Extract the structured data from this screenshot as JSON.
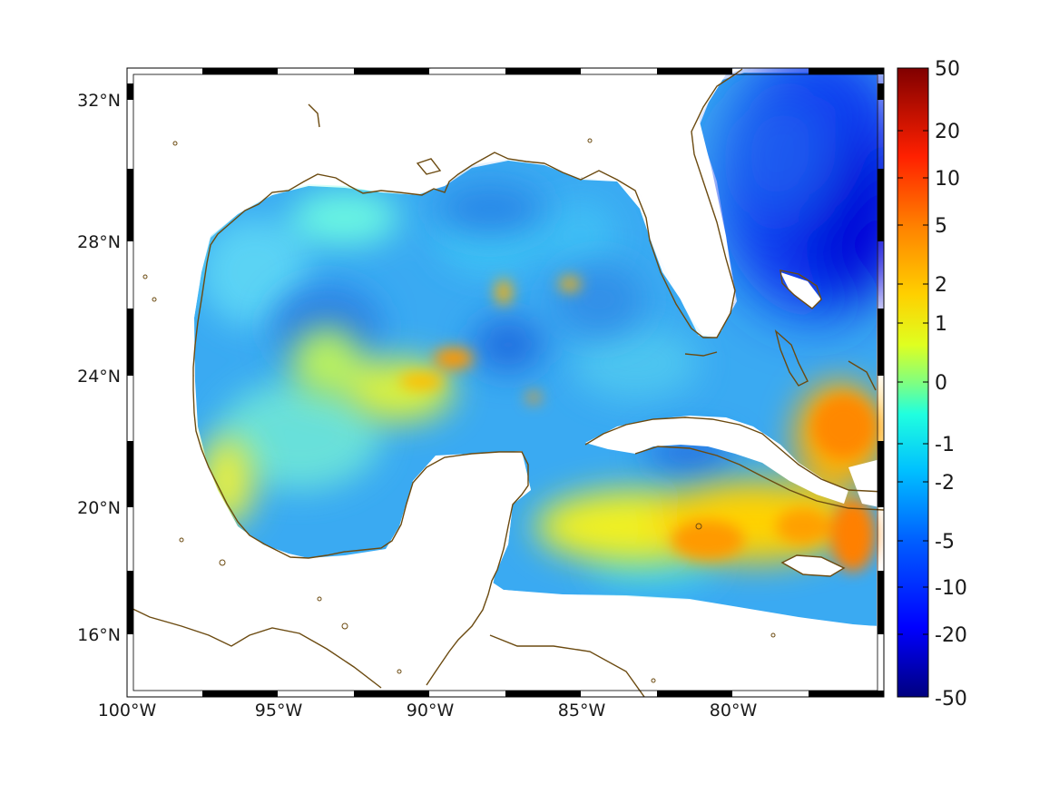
{
  "map": {
    "lon_ticks": [
      "100°W",
      "95°W",
      "90°W",
      "85°W",
      "80°W"
    ],
    "lat_ticks": [
      "32°N",
      "28°N",
      "24°N",
      "20°N",
      "16°N"
    ],
    "extent": {
      "lon_min": -100,
      "lon_max": -75.2,
      "lat_min": 14.3,
      "lat_max": 33.0
    },
    "grid": "dashed",
    "coastline_color": "#6b4a10"
  },
  "colorbar": {
    "labels": [
      "50",
      "20",
      "10",
      "5",
      "2",
      "1",
      "0",
      "-1",
      "-2",
      "-5",
      "-10",
      "-20",
      "-50"
    ],
    "colormap": "jet"
  }
}
